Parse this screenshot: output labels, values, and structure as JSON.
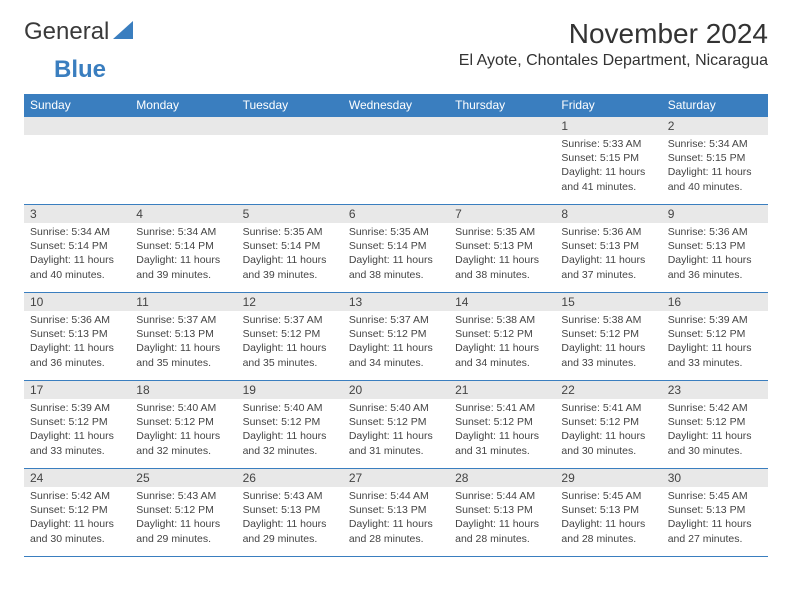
{
  "logo": {
    "text1": "General",
    "text2": "Blue"
  },
  "title": "November 2024",
  "location": "El Ayote, Chontales Department, Nicaragua",
  "colors": {
    "header_bg": "#3a7ebf",
    "header_text": "#ffffff",
    "row_border": "#3a7ebf",
    "daynum_bg": "#e8e8e8",
    "text": "#444444",
    "logo_blue": "#3a7ebf"
  },
  "dayNames": [
    "Sunday",
    "Monday",
    "Tuesday",
    "Wednesday",
    "Thursday",
    "Friday",
    "Saturday"
  ],
  "weeks": [
    [
      {
        "empty": true
      },
      {
        "empty": true
      },
      {
        "empty": true
      },
      {
        "empty": true
      },
      {
        "empty": true
      },
      {
        "num": "1",
        "sunrise": "Sunrise: 5:33 AM",
        "sunset": "Sunset: 5:15 PM",
        "daylight": "Daylight: 11 hours and 41 minutes."
      },
      {
        "num": "2",
        "sunrise": "Sunrise: 5:34 AM",
        "sunset": "Sunset: 5:15 PM",
        "daylight": "Daylight: 11 hours and 40 minutes."
      }
    ],
    [
      {
        "num": "3",
        "sunrise": "Sunrise: 5:34 AM",
        "sunset": "Sunset: 5:14 PM",
        "daylight": "Daylight: 11 hours and 40 minutes."
      },
      {
        "num": "4",
        "sunrise": "Sunrise: 5:34 AM",
        "sunset": "Sunset: 5:14 PM",
        "daylight": "Daylight: 11 hours and 39 minutes."
      },
      {
        "num": "5",
        "sunrise": "Sunrise: 5:35 AM",
        "sunset": "Sunset: 5:14 PM",
        "daylight": "Daylight: 11 hours and 39 minutes."
      },
      {
        "num": "6",
        "sunrise": "Sunrise: 5:35 AM",
        "sunset": "Sunset: 5:14 PM",
        "daylight": "Daylight: 11 hours and 38 minutes."
      },
      {
        "num": "7",
        "sunrise": "Sunrise: 5:35 AM",
        "sunset": "Sunset: 5:13 PM",
        "daylight": "Daylight: 11 hours and 38 minutes."
      },
      {
        "num": "8",
        "sunrise": "Sunrise: 5:36 AM",
        "sunset": "Sunset: 5:13 PM",
        "daylight": "Daylight: 11 hours and 37 minutes."
      },
      {
        "num": "9",
        "sunrise": "Sunrise: 5:36 AM",
        "sunset": "Sunset: 5:13 PM",
        "daylight": "Daylight: 11 hours and 36 minutes."
      }
    ],
    [
      {
        "num": "10",
        "sunrise": "Sunrise: 5:36 AM",
        "sunset": "Sunset: 5:13 PM",
        "daylight": "Daylight: 11 hours and 36 minutes."
      },
      {
        "num": "11",
        "sunrise": "Sunrise: 5:37 AM",
        "sunset": "Sunset: 5:13 PM",
        "daylight": "Daylight: 11 hours and 35 minutes."
      },
      {
        "num": "12",
        "sunrise": "Sunrise: 5:37 AM",
        "sunset": "Sunset: 5:12 PM",
        "daylight": "Daylight: 11 hours and 35 minutes."
      },
      {
        "num": "13",
        "sunrise": "Sunrise: 5:37 AM",
        "sunset": "Sunset: 5:12 PM",
        "daylight": "Daylight: 11 hours and 34 minutes."
      },
      {
        "num": "14",
        "sunrise": "Sunrise: 5:38 AM",
        "sunset": "Sunset: 5:12 PM",
        "daylight": "Daylight: 11 hours and 34 minutes."
      },
      {
        "num": "15",
        "sunrise": "Sunrise: 5:38 AM",
        "sunset": "Sunset: 5:12 PM",
        "daylight": "Daylight: 11 hours and 33 minutes."
      },
      {
        "num": "16",
        "sunrise": "Sunrise: 5:39 AM",
        "sunset": "Sunset: 5:12 PM",
        "daylight": "Daylight: 11 hours and 33 minutes."
      }
    ],
    [
      {
        "num": "17",
        "sunrise": "Sunrise: 5:39 AM",
        "sunset": "Sunset: 5:12 PM",
        "daylight": "Daylight: 11 hours and 33 minutes."
      },
      {
        "num": "18",
        "sunrise": "Sunrise: 5:40 AM",
        "sunset": "Sunset: 5:12 PM",
        "daylight": "Daylight: 11 hours and 32 minutes."
      },
      {
        "num": "19",
        "sunrise": "Sunrise: 5:40 AM",
        "sunset": "Sunset: 5:12 PM",
        "daylight": "Daylight: 11 hours and 32 minutes."
      },
      {
        "num": "20",
        "sunrise": "Sunrise: 5:40 AM",
        "sunset": "Sunset: 5:12 PM",
        "daylight": "Daylight: 11 hours and 31 minutes."
      },
      {
        "num": "21",
        "sunrise": "Sunrise: 5:41 AM",
        "sunset": "Sunset: 5:12 PM",
        "daylight": "Daylight: 11 hours and 31 minutes."
      },
      {
        "num": "22",
        "sunrise": "Sunrise: 5:41 AM",
        "sunset": "Sunset: 5:12 PM",
        "daylight": "Daylight: 11 hours and 30 minutes."
      },
      {
        "num": "23",
        "sunrise": "Sunrise: 5:42 AM",
        "sunset": "Sunset: 5:12 PM",
        "daylight": "Daylight: 11 hours and 30 minutes."
      }
    ],
    [
      {
        "num": "24",
        "sunrise": "Sunrise: 5:42 AM",
        "sunset": "Sunset: 5:12 PM",
        "daylight": "Daylight: 11 hours and 30 minutes."
      },
      {
        "num": "25",
        "sunrise": "Sunrise: 5:43 AM",
        "sunset": "Sunset: 5:12 PM",
        "daylight": "Daylight: 11 hours and 29 minutes."
      },
      {
        "num": "26",
        "sunrise": "Sunrise: 5:43 AM",
        "sunset": "Sunset: 5:13 PM",
        "daylight": "Daylight: 11 hours and 29 minutes."
      },
      {
        "num": "27",
        "sunrise": "Sunrise: 5:44 AM",
        "sunset": "Sunset: 5:13 PM",
        "daylight": "Daylight: 11 hours and 28 minutes."
      },
      {
        "num": "28",
        "sunrise": "Sunrise: 5:44 AM",
        "sunset": "Sunset: 5:13 PM",
        "daylight": "Daylight: 11 hours and 28 minutes."
      },
      {
        "num": "29",
        "sunrise": "Sunrise: 5:45 AM",
        "sunset": "Sunset: 5:13 PM",
        "daylight": "Daylight: 11 hours and 28 minutes."
      },
      {
        "num": "30",
        "sunrise": "Sunrise: 5:45 AM",
        "sunset": "Sunset: 5:13 PM",
        "daylight": "Daylight: 11 hours and 27 minutes."
      }
    ]
  ]
}
